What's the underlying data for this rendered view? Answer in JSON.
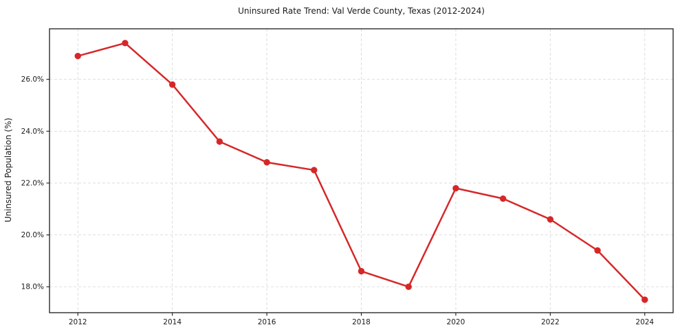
{
  "page": {
    "background_color": "#ffffff"
  },
  "chart_data": {
    "type": "line",
    "title": "Uninsured Rate Trend: Val Verde County, Texas (2012-2024)",
    "xlabel": "",
    "ylabel": "Uninsured Population (%)",
    "x": [
      2012,
      2013,
      2014,
      2015,
      2016,
      2017,
      2018,
      2019,
      2020,
      2021,
      2022,
      2023,
      2024
    ],
    "series": [
      {
        "name": "Uninsured rate",
        "color": "#d62728",
        "marker": "circle",
        "values": [
          26.9,
          27.4,
          25.8,
          23.6,
          22.8,
          22.5,
          18.6,
          18.0,
          21.8,
          21.4,
          20.6,
          19.4,
          17.5
        ]
      }
    ],
    "xlim": [
      2011.4,
      2024.6
    ],
    "ylim": [
      17.0,
      27.95
    ],
    "x_ticks": [
      2012,
      2014,
      2016,
      2018,
      2020,
      2022,
      2024
    ],
    "x_tick_labels": [
      "2012",
      "2014",
      "2016",
      "2018",
      "2020",
      "2022",
      "2024"
    ],
    "y_ticks": [
      18.0,
      20.0,
      22.0,
      24.0,
      26.0
    ],
    "y_tick_labels": [
      "18.0%",
      "20.0%",
      "22.0%",
      "24.0%",
      "26.0%"
    ],
    "grid": true,
    "grid_color": "#d9d9d9",
    "spine_color": "#1a1a1a",
    "legend": "none"
  }
}
